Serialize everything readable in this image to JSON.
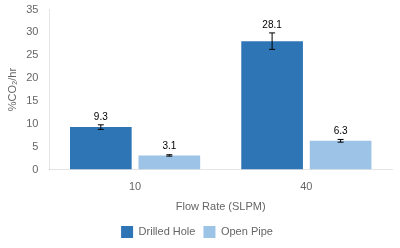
{
  "chart_data": {
    "type": "bar",
    "categories": [
      "10",
      "40"
    ],
    "series": [
      {
        "name": "Drilled Hole",
        "color": "#2E75B6",
        "values": [
          9.3,
          28.1
        ],
        "errors": [
          0.5,
          1.8
        ]
      },
      {
        "name": "Open Pipe",
        "color": "#9DC3E6",
        "values": [
          3.1,
          6.3
        ],
        "errors": [
          0.15,
          0.3
        ]
      }
    ],
    "xlabel": "Flow Rate (SLPM)",
    "ylabel": "%CO₂/hr",
    "ylim": [
      0,
      35
    ],
    "yticks": [
      0,
      5,
      10,
      15,
      20,
      25,
      30,
      35
    ],
    "grid": false,
    "legend": "bottom",
    "data_labels": true
  }
}
